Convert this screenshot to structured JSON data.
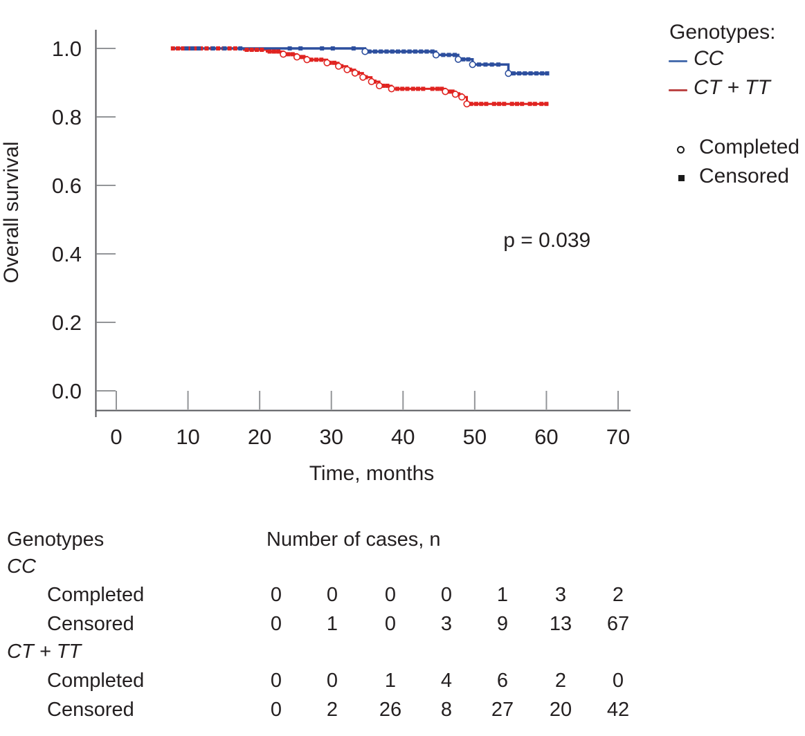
{
  "figure": {
    "p_label": "p = 0.039"
  },
  "legend": {
    "title": "Genotypes:",
    "series": [
      {
        "label": "CC",
        "color": "#4a6fae"
      },
      {
        "label": "CT + TT",
        "color": "#bc4545"
      }
    ],
    "markers": [
      {
        "label": "Completed",
        "shape": "open-circle"
      },
      {
        "label": "Censored",
        "shape": "filled-square"
      }
    ]
  },
  "chart_data": {
    "type": "line",
    "subtype": "kaplan-meier-step",
    "title": "",
    "xlabel": "Time, months",
    "ylabel": "Overall survival",
    "xlim": [
      0,
      70
    ],
    "ylim": [
      0.0,
      1.0
    ],
    "xticks": [
      0,
      10,
      20,
      30,
      40,
      50,
      60,
      70
    ],
    "yticks": [
      "0.0",
      "0.2",
      "0.4",
      "0.6",
      "0.8",
      "1.0"
    ],
    "grid": false,
    "legend_position": "right-outside",
    "annotation": {
      "text": "p = 0.039",
      "x_months": 54,
      "y_survival": 0.42
    },
    "series": [
      {
        "name": "CC",
        "color": "#2d4f9e",
        "end_x": 60.2,
        "steps": [
          [
            7.7,
            1.0
          ],
          [
            34.7,
            0.991
          ],
          [
            44.6,
            0.981
          ],
          [
            47.7,
            0.968
          ],
          [
            49.7,
            0.953
          ],
          [
            54.7,
            0.927
          ]
        ],
        "events_x": [
          34.7,
          44.6,
          47.7,
          49.7,
          54.7
        ],
        "censored_x": [
          9.8,
          10.6,
          11.5,
          13.5,
          15.1,
          17.3,
          24.2,
          25.7,
          28.7,
          30.2,
          33.1,
          35.3,
          36.1,
          36.9,
          37.7,
          38.5,
          39.3,
          40.1,
          40.9,
          41.7,
          42.5,
          43.3,
          44.1,
          45.6,
          46.4,
          47.2,
          48.4,
          49.1,
          50.6,
          51.5,
          52.4,
          53.3,
          55.4,
          56.2,
          57.0,
          57.8,
          58.6,
          59.4,
          60.1
        ]
      },
      {
        "name": "CT + TT",
        "color": "#e02421",
        "end_x": 60.3,
        "steps": [
          [
            7.7,
            1.0
          ],
          [
            17.8,
            0.996
          ],
          [
            21.0,
            0.991
          ],
          [
            23.3,
            0.983
          ],
          [
            25.2,
            0.975
          ],
          [
            26.6,
            0.967
          ],
          [
            29.4,
            0.958
          ],
          [
            31.0,
            0.948
          ],
          [
            32.2,
            0.938
          ],
          [
            33.3,
            0.928
          ],
          [
            34.4,
            0.916
          ],
          [
            35.6,
            0.903
          ],
          [
            36.7,
            0.891
          ],
          [
            38.4,
            0.882
          ],
          [
            45.9,
            0.874
          ],
          [
            47.3,
            0.866
          ],
          [
            48.2,
            0.858
          ],
          [
            48.9,
            0.838
          ]
        ],
        "events_x": [
          23.3,
          25.2,
          26.6,
          29.4,
          31.0,
          32.2,
          33.3,
          34.4,
          35.6,
          36.7,
          38.4,
          45.9,
          47.3,
          48.2,
          48.9
        ],
        "censored_x": [
          7.9,
          8.6,
          9.3,
          10.2,
          11.0,
          11.8,
          12.6,
          13.4,
          14.2,
          15.0,
          15.8,
          16.6,
          18.2,
          18.9,
          19.6,
          20.3,
          21.4,
          22.0,
          22.6,
          24.0,
          24.6,
          25.6,
          26.1,
          27.2,
          27.9,
          28.6,
          29.8,
          30.4,
          31.4,
          32.6,
          33.7,
          34.8,
          36.0,
          37.2,
          37.8,
          39.2,
          39.9,
          40.6,
          41.4,
          42.1,
          42.8,
          44.1,
          44.8,
          45.4,
          46.4,
          46.9,
          47.7,
          49.5,
          50.2,
          50.9,
          51.6,
          52.7,
          53.4,
          54.1,
          55.2,
          55.9,
          56.6,
          57.7,
          58.4,
          59.3,
          60.0
        ]
      }
    ]
  },
  "table": {
    "col_header_left": "Genotypes",
    "col_header_right": "Number of cases, n",
    "groups": [
      {
        "name": "CC",
        "rows": [
          {
            "label": "Completed",
            "values": [
              0,
              0,
              0,
              0,
              1,
              3,
              2
            ]
          },
          {
            "label": "Censored",
            "values": [
              0,
              1,
              0,
              3,
              9,
              13,
              67
            ]
          }
        ]
      },
      {
        "name": "CT + TT",
        "rows": [
          {
            "label": "Completed",
            "values": [
              0,
              0,
              1,
              4,
              6,
              2,
              0
            ]
          },
          {
            "label": "Censored",
            "values": [
              0,
              2,
              26,
              8,
              27,
              20,
              42
            ]
          }
        ]
      }
    ]
  },
  "colors": {
    "cc_line": "#2d4f9e",
    "cttt_line": "#e02421",
    "axis_line": "#55565a",
    "tick_line": "#939598",
    "text": "#231f20"
  }
}
